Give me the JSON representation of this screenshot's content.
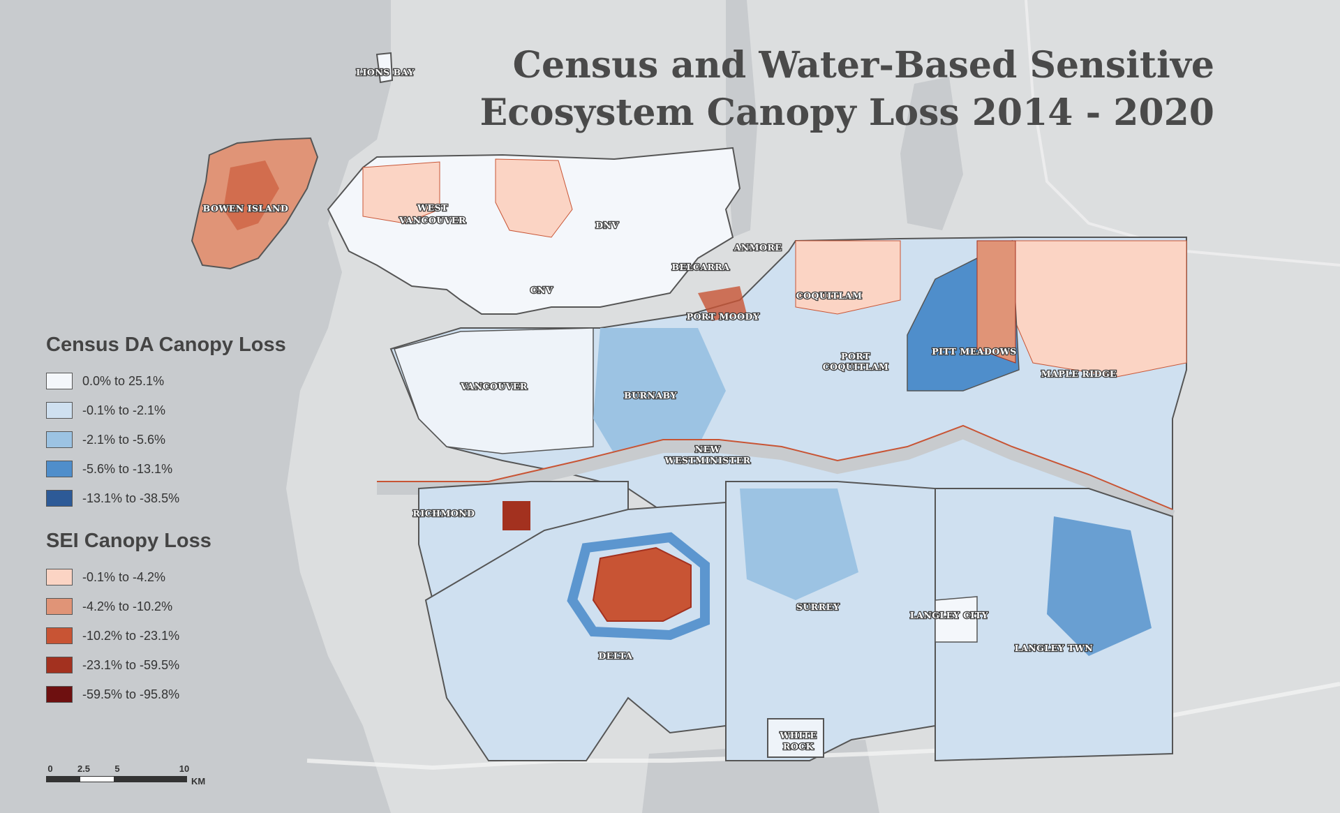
{
  "title": {
    "line1": "Census and Water-Based Sensitive",
    "line2": "Ecosystem Canopy Loss 2014 - 2020"
  },
  "legend": {
    "census": {
      "heading": "Census DA Canopy Loss",
      "classes": [
        {
          "label": "0.0% to 25.1%",
          "color": "#f4f7fb"
        },
        {
          "label": "-0.1% to -2.1%",
          "color": "#cfe0f0"
        },
        {
          "label": "-2.1% to -5.6%",
          "color": "#9cc3e3"
        },
        {
          "label": "-5.6% to -13.1%",
          "color": "#4f8ecb"
        },
        {
          "label": "-13.1% to -38.5%",
          "color": "#2d5a97"
        }
      ]
    },
    "sei": {
      "heading": "SEI Canopy Loss",
      "classes": [
        {
          "label": "-0.1% to -4.2%",
          "color": "#fbd4c4"
        },
        {
          "label": "-4.2% to -10.2%",
          "color": "#e09477"
        },
        {
          "label": "-10.2% to -23.1%",
          "color": "#c85434"
        },
        {
          "label": "-23.1% to -59.5%",
          "color": "#a3311f"
        },
        {
          "label": "-59.5% to -95.8%",
          "color": "#6e1010"
        }
      ]
    }
  },
  "places": {
    "lions_bay": "LIONS BAY",
    "bowen_island": "BOWEN ISLAND",
    "west_vancouver_1": "WEST",
    "west_vancouver_2": "VANCOUVER",
    "dnv": "DNV",
    "belcarra": "BELCARRA",
    "anmore": "ANMORE",
    "cnv": "CNV",
    "port_moody": "PORT MOODY",
    "coquitlam": "COQUITLAM",
    "port_coquitlam_1": "PORT",
    "port_coquitlam_2": "COQUITLAM",
    "pitt_meadows": "PITT MEADOWS",
    "maple_ridge": "MAPLE RIDGE",
    "vancouver": "VANCOUVER",
    "burnaby": "BURNABY",
    "new_westminster_1": "NEW",
    "new_westminster_2": "WESTMINISTER",
    "richmond": "RICHMOND",
    "surrey": "SURREY",
    "langley_city": "LANGLEY CITY",
    "langley_twn": "LANGLEY TWN",
    "delta": "DELTA",
    "white_rock_1": "WHITE",
    "white_rock_2": "ROCK"
  },
  "scale_bar": {
    "ticks": [
      "0",
      "2.5",
      "5",
      "10"
    ],
    "unit": "KM"
  },
  "colors": {
    "water": "#c9cccf",
    "land": "#dcdedf",
    "boundary": "#555555"
  }
}
